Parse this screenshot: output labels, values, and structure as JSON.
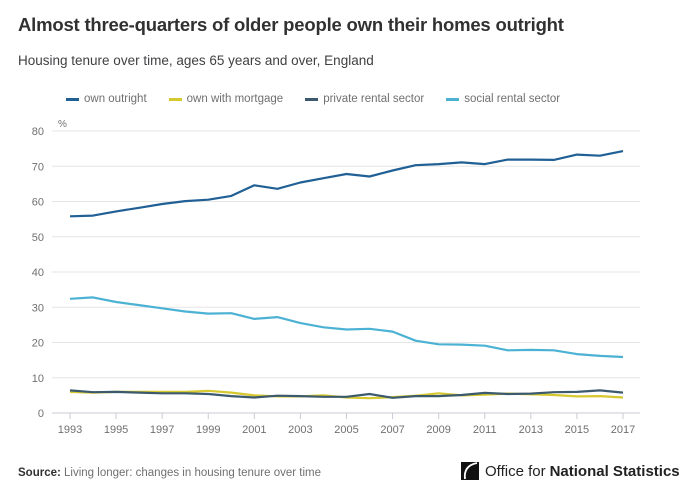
{
  "header": {
    "title": "Almost three-quarters of older people own their homes outright",
    "subtitle": "Housing tenure over time, ages 65 years and over, England"
  },
  "footer": {
    "source_label": "Source:",
    "source_text": "Living longer: changes in housing tenure over time",
    "brand_light": "Office for",
    "brand_bold": "National Statistics"
  },
  "chart_data": {
    "type": "line",
    "title": "Almost three-quarters of older people own their homes outright",
    "subtitle": "Housing tenure over time, ages 65 years and over, England",
    "xlabel": "",
    "ylabel": "%",
    "ylim": [
      0,
      80
    ],
    "yticks": [
      0,
      10,
      20,
      30,
      40,
      50,
      60,
      70,
      80
    ],
    "xticks": [
      1993,
      1995,
      1997,
      1999,
      2001,
      2003,
      2005,
      2007,
      2009,
      2011,
      2013,
      2015,
      2017
    ],
    "grid": true,
    "legend_position": "top",
    "x": [
      1993,
      1994,
      1995,
      1996,
      1997,
      1998,
      1999,
      2000,
      2001,
      2002,
      2003,
      2004,
      2005,
      2006,
      2007,
      2008,
      2009,
      2010,
      2011,
      2012,
      2013,
      2014,
      2015,
      2016,
      2017
    ],
    "series": [
      {
        "name": "own outright",
        "color": "#206095",
        "values": [
          55.8,
          56.0,
          57.2,
          58.2,
          59.3,
          60.1,
          60.5,
          61.6,
          64.6,
          63.6,
          65.4,
          66.6,
          67.8,
          67.1,
          68.8,
          70.3,
          70.6,
          71.1,
          70.6,
          71.9,
          71.9,
          71.8,
          73.3,
          73.0,
          74.3
        ]
      },
      {
        "name": "own with mortgage",
        "color": "#d6c82f",
        "values": [
          6.0,
          5.8,
          6.0,
          6.0,
          6.0,
          6.0,
          6.3,
          5.8,
          5.0,
          4.7,
          4.7,
          5.0,
          4.4,
          4.2,
          4.5,
          4.9,
          5.6,
          5.0,
          5.2,
          5.5,
          5.3,
          5.1,
          4.7,
          4.8,
          4.4
        ]
      },
      {
        "name": "private rental sector",
        "color": "#3c5a6e",
        "values": [
          6.4,
          5.9,
          6.0,
          5.8,
          5.6,
          5.6,
          5.4,
          4.8,
          4.4,
          4.9,
          4.8,
          4.6,
          4.6,
          5.4,
          4.3,
          4.8,
          4.8,
          5.1,
          5.7,
          5.4,
          5.5,
          5.9,
          6.0,
          6.4,
          5.8
        ]
      },
      {
        "name": "social rental sector",
        "color": "#4cb2d4",
        "values": [
          32.4,
          32.8,
          31.5,
          30.6,
          29.7,
          28.8,
          28.2,
          28.3,
          26.7,
          27.2,
          25.5,
          24.3,
          23.7,
          23.9,
          23.1,
          20.5,
          19.5,
          19.4,
          19.1,
          17.8,
          17.9,
          17.8,
          16.7,
          16.2,
          15.9
        ]
      }
    ]
  }
}
